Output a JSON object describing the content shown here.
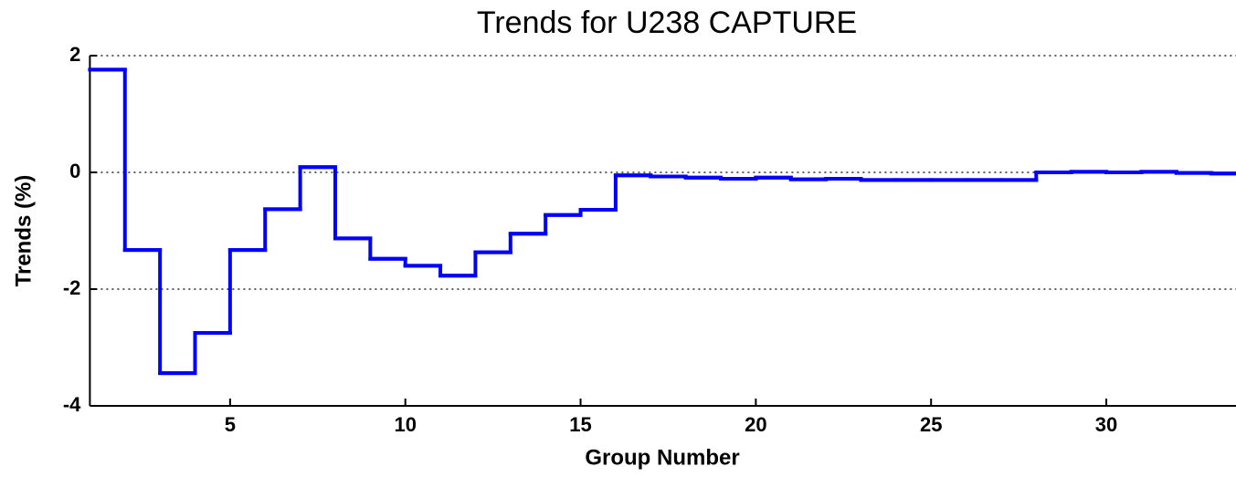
{
  "chart_data": {
    "type": "stairs",
    "title": "Trends for U238 CAPTURE",
    "x_label": "Group Number",
    "y_label": "Trends (%)",
    "x": [
      1,
      2,
      3,
      4,
      5,
      6,
      7,
      8,
      9,
      10,
      11,
      12,
      13,
      14,
      15,
      16,
      17,
      18,
      19,
      20,
      21,
      22,
      23,
      24,
      25,
      26,
      27,
      28,
      29,
      30,
      31,
      32,
      33
    ],
    "series": [
      {
        "name": "U238 CAPTURE",
        "color": "#0000ff",
        "values": [
          1.76,
          -1.33,
          -3.44,
          -2.75,
          -1.33,
          -0.63,
          0.09,
          -1.13,
          -1.48,
          -1.6,
          -1.77,
          -1.37,
          -1.05,
          -0.73,
          -0.64,
          -0.05,
          -0.07,
          -0.09,
          -0.11,
          -0.09,
          -0.12,
          -0.11,
          -0.13,
          -0.13,
          -0.13,
          -0.13,
          -0.13,
          0.0,
          0.01,
          0.0,
          0.01,
          -0.01,
          -0.02
        ]
      }
    ],
    "xlim": [
      1,
      33.7
    ],
    "ylim": [
      -4,
      2
    ],
    "xticks": [
      5,
      10,
      15,
      20,
      25,
      30
    ],
    "yticks": [
      -4,
      -2,
      0,
      2
    ],
    "grid": "y"
  }
}
